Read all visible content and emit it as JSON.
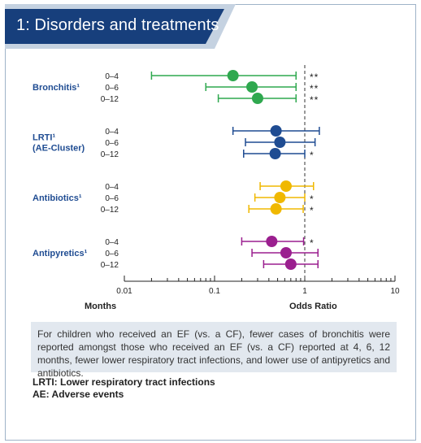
{
  "header": {
    "title": "1: Disorders and treatments"
  },
  "chart_data": {
    "type": "forest",
    "xscale": "log",
    "xlim": [
      0.01,
      10
    ],
    "xticks": [
      "0.01",
      "0.1",
      "1",
      "10"
    ],
    "reference_line": 1,
    "xlabel_left": "Months",
    "xlabel_right": "Odds Ratio",
    "groups": [
      {
        "label_lines": [
          "Bronchitis¹"
        ],
        "color": "#2fa84f",
        "rows": [
          {
            "label": "0–4",
            "or": 0.16,
            "low": 0.02,
            "high": 0.8,
            "mark": "**"
          },
          {
            "label": "0–6",
            "or": 0.26,
            "low": 0.08,
            "high": 0.8,
            "mark": "**"
          },
          {
            "label": "0–12",
            "or": 0.3,
            "low": 0.11,
            "high": 0.8,
            "mark": "**"
          }
        ]
      },
      {
        "label_lines": [
          "LRTI¹",
          "(AE-Cluster)"
        ],
        "color": "#1f4c92",
        "rows": [
          {
            "label": "0–4",
            "or": 0.48,
            "low": 0.16,
            "high": 1.45,
            "mark": ""
          },
          {
            "label": "0–6",
            "or": 0.53,
            "low": 0.22,
            "high": 1.3,
            "mark": ""
          },
          {
            "label": "0–12",
            "or": 0.47,
            "low": 0.21,
            "high": 1.0,
            "mark": "*"
          }
        ]
      },
      {
        "label_lines": [
          "Antibiotics¹"
        ],
        "color": "#f0b800",
        "rows": [
          {
            "label": "0–4",
            "or": 0.62,
            "low": 0.32,
            "high": 1.25,
            "mark": ""
          },
          {
            "label": "0–6",
            "or": 0.53,
            "low": 0.28,
            "high": 1.0,
            "mark": "*"
          },
          {
            "label": "0–12",
            "or": 0.48,
            "low": 0.24,
            "high": 0.96,
            "mark": "*"
          }
        ]
      },
      {
        "label_lines": [
          "Antipyretics¹"
        ],
        "color": "#9b1f8f",
        "rows": [
          {
            "label": "0–4",
            "or": 0.43,
            "low": 0.2,
            "high": 0.97,
            "mark": "*"
          },
          {
            "label": "0–6",
            "or": 0.62,
            "low": 0.26,
            "high": 1.4,
            "mark": ""
          },
          {
            "label": "0–12",
            "or": 0.7,
            "low": 0.35,
            "high": 1.4,
            "mark": ""
          }
        ]
      }
    ]
  },
  "caption": "For children who received an EF (vs. a CF), fewer cases of bronchitis were reported amongst those who received an EF (vs. a CF) reported at 4, 6, 12 months, fewer lower respiratory tract infections, and lower use of antipyretics and antibiotics.",
  "notes": [
    "LRTI: Lower respiratory tract infections",
    "AE: Adverse events"
  ]
}
